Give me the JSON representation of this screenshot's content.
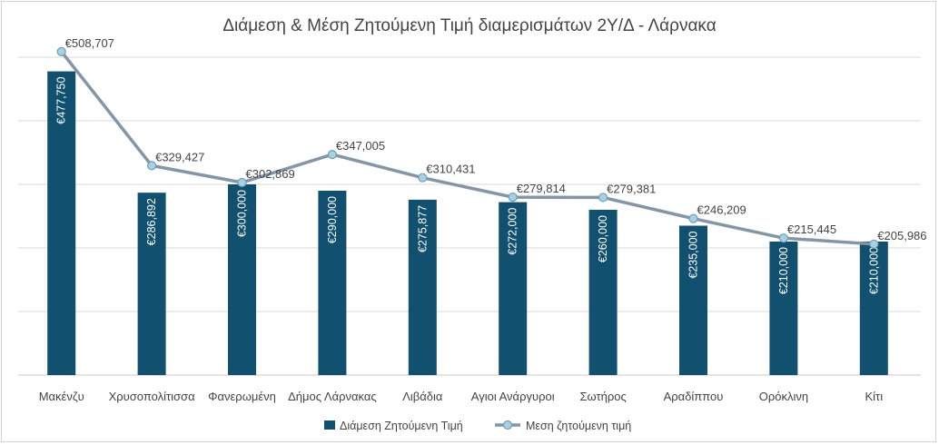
{
  "chart_data": {
    "type": "bar+line",
    "title": "Διάμεση & Μέση Ζητούμενη Τιμή διαμερισμάτων 2Υ/Δ - Λάρνακα",
    "categories": [
      "Μακένζυ",
      "Χρυσοπολίτισσα",
      "Φανερωμένη",
      "Δήμος Λάρνακας",
      "Λιβάδια",
      "Αγιοι Ανάργυροι",
      "Σωτήρος",
      "Αραδίππου",
      "Ορόκλινη",
      "Κίτι"
    ],
    "series": [
      {
        "name": "Διάμεση Ζητούμενη Τιμή",
        "type": "bar",
        "color": "#11506e",
        "values": [
          477750,
          286892,
          300000,
          290000,
          275877,
          272000,
          260000,
          235000,
          210000,
          210000
        ],
        "labels": [
          "€477,750",
          "€286,892",
          "€300,000",
          "€290,000",
          "€275,877",
          "€272,000",
          "€260,000",
          "€235,000",
          "€210,000",
          "€210,000"
        ]
      },
      {
        "name": "Μεση ζητούμενη τιμή",
        "type": "line",
        "color": "#8496a6",
        "marker_fill": "#a9cfe0",
        "values": [
          508707,
          329427,
          302869,
          347005,
          310431,
          279814,
          279381,
          246209,
          215445,
          205986
        ],
        "labels": [
          "€508,707",
          "€329,427",
          "€302,869",
          "€347,005",
          "€310,431",
          "€279,814",
          "€279,381",
          "€246,209",
          "€215,445",
          "€205,986"
        ]
      }
    ],
    "ylim": [
      0,
      500000
    ],
    "grid": true,
    "legend_position": "bottom"
  }
}
